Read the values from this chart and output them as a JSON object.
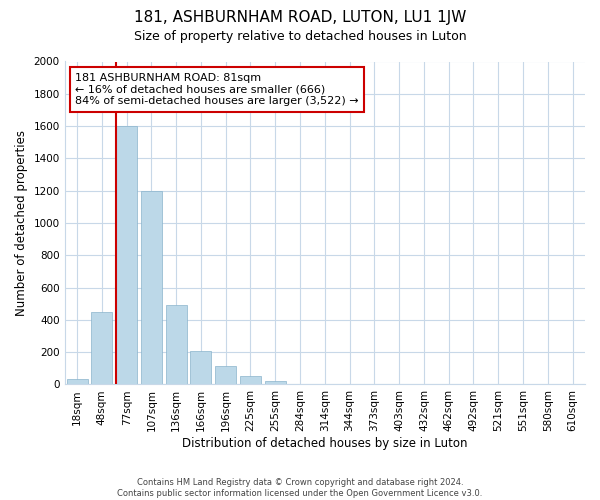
{
  "title": "181, ASHBURNHAM ROAD, LUTON, LU1 1JW",
  "subtitle": "Size of property relative to detached houses in Luton",
  "xlabel": "Distribution of detached houses by size in Luton",
  "ylabel": "Number of detached properties",
  "bar_labels": [
    "18sqm",
    "48sqm",
    "77sqm",
    "107sqm",
    "136sqm",
    "166sqm",
    "196sqm",
    "225sqm",
    "255sqm",
    "284sqm",
    "314sqm",
    "344sqm",
    "373sqm",
    "403sqm",
    "432sqm",
    "462sqm",
    "492sqm",
    "521sqm",
    "551sqm",
    "580sqm",
    "610sqm"
  ],
  "bar_values": [
    35,
    450,
    1600,
    1200,
    490,
    210,
    115,
    50,
    20,
    5,
    2,
    0,
    0,
    0,
    0,
    0,
    0,
    0,
    0,
    0,
    0
  ],
  "bar_color": "#bcd8e8",
  "bar_edge_color": "#8ab4cc",
  "highlight_bar_index": 2,
  "vline_color": "#cc0000",
  "vline_x_index": 2,
  "annotation_line1": "181 ASHBURNHAM ROAD: 81sqm",
  "annotation_line2": "← 16% of detached houses are smaller (666)",
  "annotation_line3": "84% of semi-detached houses are larger (3,522) →",
  "annotation_box_edgecolor": "#cc0000",
  "ylim": [
    0,
    2000
  ],
  "yticks": [
    0,
    200,
    400,
    600,
    800,
    1000,
    1200,
    1400,
    1600,
    1800,
    2000
  ],
  "footer_line1": "Contains HM Land Registry data © Crown copyright and database right 2024.",
  "footer_line2": "Contains public sector information licensed under the Open Government Licence v3.0.",
  "bg_color": "#ffffff",
  "grid_color": "#c8d8e8",
  "title_fontsize": 11,
  "subtitle_fontsize": 9,
  "axis_label_fontsize": 8.5,
  "tick_fontsize": 7.5,
  "annotation_fontsize": 8,
  "footer_fontsize": 6
}
